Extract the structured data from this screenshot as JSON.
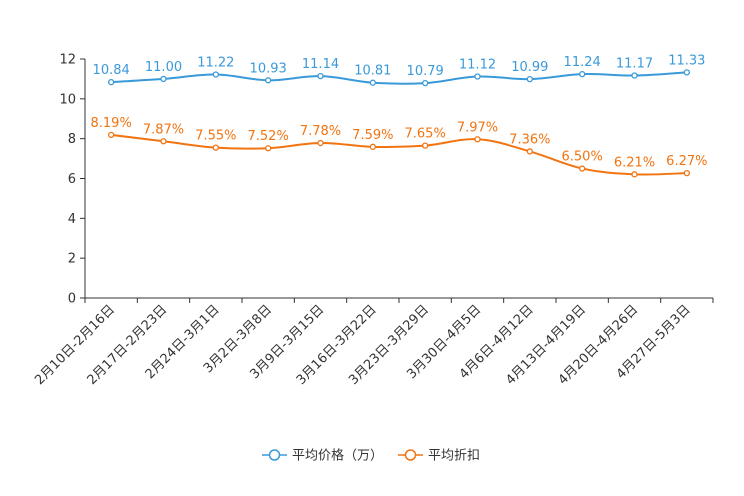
{
  "chart_data": {
    "type": "line",
    "title": "",
    "xlabel": "",
    "ylabel": "",
    "ylim": [
      0,
      12
    ],
    "yticks": [
      "0",
      "2",
      "4",
      "6",
      "8",
      "10",
      "12"
    ],
    "categories": [
      "2月10日-2月16日",
      "2月17日-2月23日",
      "2月24日-3月1日",
      "3月2日-3月8日",
      "3月9日-3月15日",
      "3月16日-3月22日",
      "3月23日-3月29日",
      "3月30日-4月5日",
      "4月6日-4月12日",
      "4月13日-4月19日",
      "4月20日-4月26日",
      "4月27日-5月3日"
    ],
    "series": [
      {
        "name": "平均价格（万）",
        "color": "#3a9ad9",
        "values": [
          10.84,
          11.0,
          11.22,
          10.93,
          11.14,
          10.81,
          10.79,
          11.12,
          10.99,
          11.24,
          11.17,
          11.33
        ],
        "labels": [
          "10.84",
          "11.00",
          "11.22",
          "10.93",
          "11.14",
          "10.81",
          "10.79",
          "11.12",
          "10.99",
          "11.24",
          "11.17",
          "11.33"
        ]
      },
      {
        "name": "平均折扣",
        "color": "#f27411",
        "values": [
          8.19,
          7.87,
          7.55,
          7.52,
          7.78,
          7.59,
          7.65,
          7.97,
          7.36,
          6.5,
          6.21,
          6.27
        ],
        "labels": [
          "8.19%",
          "7.87%",
          "7.55%",
          "7.52%",
          "7.78%",
          "7.59%",
          "7.65%",
          "7.97%",
          "7.36%",
          "6.50%",
          "6.21%",
          "6.27%"
        ]
      }
    ],
    "grid": false,
    "legend_position": "bottom-center"
  }
}
